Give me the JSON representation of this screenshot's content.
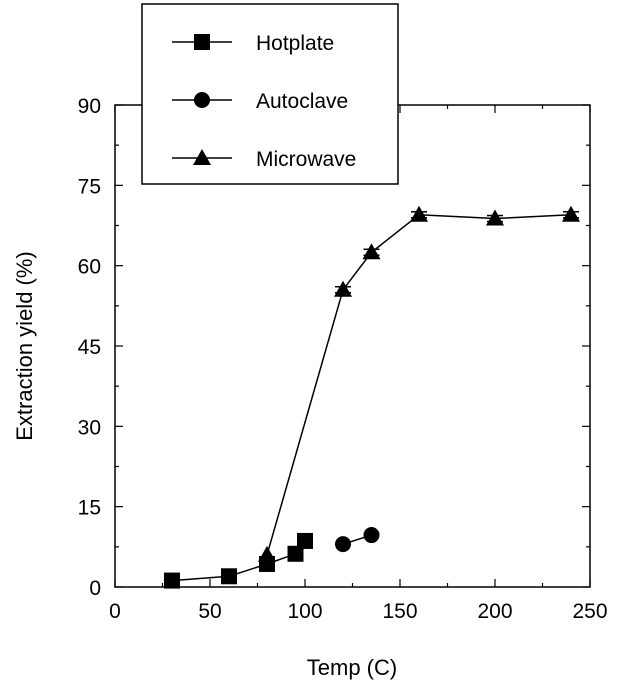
{
  "chart_data": {
    "type": "line",
    "xlabel": "Temp (C)",
    "ylabel": "Extraction yield (%)",
    "xlim": [
      0,
      250
    ],
    "ylim": [
      0,
      90
    ],
    "xticks": [
      0,
      50,
      100,
      150,
      200,
      250
    ],
    "yticks": [
      0,
      15,
      30,
      45,
      60,
      75,
      90
    ],
    "grid": false,
    "legend_position": "top-left, overlapping top frame",
    "series": [
      {
        "name": "Hotplate",
        "marker": "square",
        "connected": true,
        "points": [
          [
            30,
            1.2
          ],
          [
            60,
            2.0
          ],
          [
            80,
            4.3
          ],
          [
            95,
            6.2
          ],
          [
            100,
            8.6
          ]
        ]
      },
      {
        "name": "Autoclave",
        "marker": "circle",
        "connected": true,
        "points": [
          [
            120,
            8.0
          ],
          [
            135,
            9.7
          ]
        ]
      },
      {
        "name": "Microwave",
        "marker": "triangle",
        "connected": true,
        "points": [
          [
            80,
            6.0
          ],
          [
            120,
            55.5
          ],
          [
            135,
            62.5
          ],
          [
            160,
            69.5
          ],
          [
            200,
            68.8
          ],
          [
            240,
            69.5
          ]
        ]
      }
    ]
  }
}
